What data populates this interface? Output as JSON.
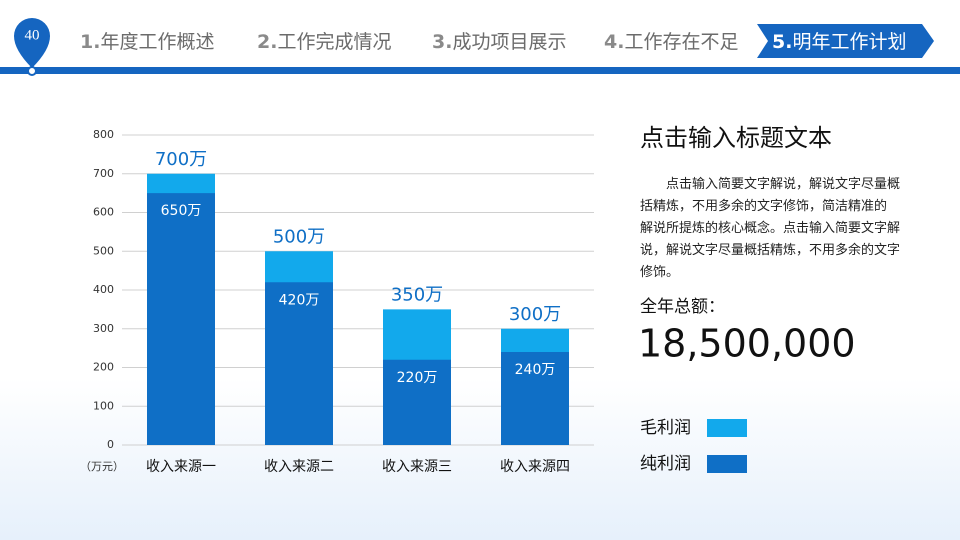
{
  "header": {
    "page_number": "40",
    "nav": [
      {
        "num": "1.",
        "label": "年度工作概述"
      },
      {
        "num": "2.",
        "label": "工作完成情况"
      },
      {
        "num": "3.",
        "label": "成功项目展示"
      },
      {
        "num": "4.",
        "label": "工作存在不足"
      },
      {
        "num": "5.",
        "label": "明年工作计划"
      }
    ]
  },
  "panel": {
    "title": "点击输入标题文本",
    "body": "点击输入简要文字解说，解说文字尽量概括精炼，不用多余的文字修饰，简洁精准的 解说所提炼的核心概念。点击输入简要文字解说，解说文字尽量概括精炼，不用多余的文字修饰。",
    "total_label": "全年总额：",
    "total_value": "18,500,000"
  },
  "chart_data": {
    "type": "bar",
    "overlap": true,
    "categories": [
      "收入来源一",
      "收入来源二",
      "收入来源三",
      "收入来源四"
    ],
    "series": [
      {
        "name": "毛利润",
        "color": "#12a9ec",
        "values": [
          700,
          500,
          350,
          300
        ],
        "value_labels": [
          "700万",
          "500万",
          "350万",
          "300万"
        ]
      },
      {
        "name": "纯利润",
        "color": "#0f6fc6",
        "values": [
          650,
          420,
          220,
          240
        ],
        "value_labels": [
          "650万",
          "420万",
          "220万",
          "240万"
        ]
      }
    ],
    "y_label": "（万元）",
    "ylim": [
      0,
      800
    ],
    "yticks": [
      0,
      100,
      200,
      300,
      400,
      500,
      600,
      700,
      800
    ],
    "grid": true,
    "legend": "bottom-right"
  }
}
